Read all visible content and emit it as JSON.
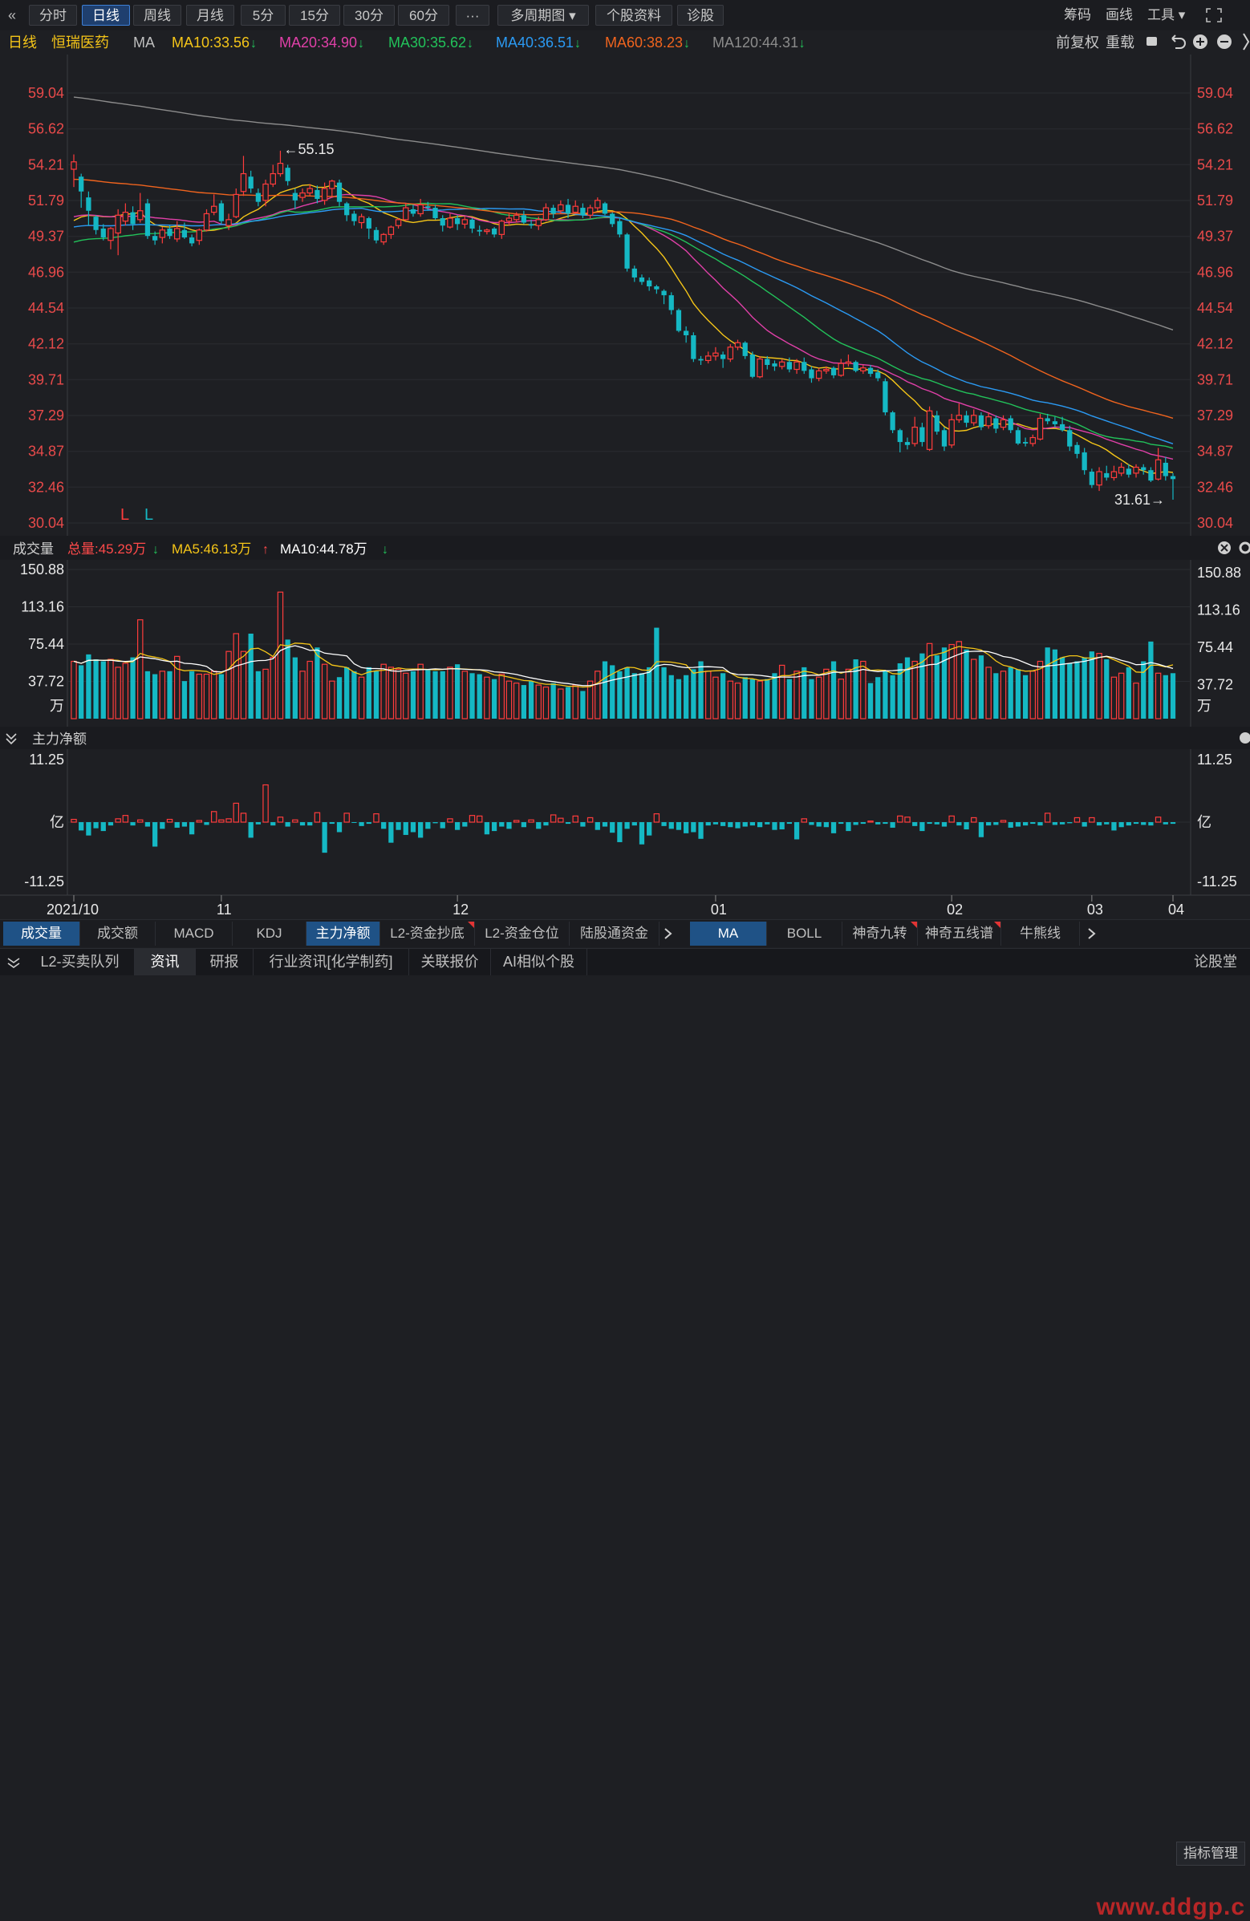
{
  "toolbar": {
    "back_icon": "double-chevron-left-icon",
    "buttons": [
      "分时",
      "日线",
      "周线",
      "月线",
      "5分",
      "15分",
      "30分",
      "60分",
      "···",
      "多周期图 ▾",
      "个股资料",
      "诊股"
    ],
    "active": "日线",
    "right_items": [
      "筹码",
      "画线",
      "工具 ▾"
    ],
    "fullscreen_icon": "fullscreen-icon"
  },
  "ma_bar": {
    "period": "日线",
    "stock": "恒瑞医药",
    "label": "MA",
    "items": [
      {
        "text": "MA10:33.56",
        "arrow": "↓",
        "color": "#f5c518"
      },
      {
        "text": "MA20:34.90",
        "arrow": "↓",
        "color": "#e040a8"
      },
      {
        "text": "MA30:35.62",
        "arrow": "↓",
        "color": "#22c25a"
      },
      {
        "text": "MA40:36.51",
        "arrow": "↓",
        "color": "#2b9af3"
      },
      {
        "text": "MA60:38.23",
        "arrow": "↓",
        "color": "#f0641e"
      },
      {
        "text": "MA120:44.31",
        "arrow": "↓",
        "color": "#8c8c8c"
      }
    ],
    "right_items": [
      "前复权",
      "重载"
    ]
  },
  "price_axis": [
    "59.04",
    "56.62",
    "54.21",
    "51.79",
    "49.37",
    "46.96",
    "44.54",
    "42.12",
    "39.71",
    "37.29",
    "34.87",
    "32.46",
    "30.04"
  ],
  "annotations": {
    "high": "←55.15",
    "low": "31.61→",
    "mark1": "L",
    "mark2": "L"
  },
  "volume_bar": {
    "title": "成交量",
    "total": "总量:45.29万",
    "ma5": "MA5:46.13万",
    "ma10": "MA10:44.78万",
    "axis": [
      "150.88",
      "113.16",
      "75.44",
      "37.72",
      "万"
    ]
  },
  "flow_bar": {
    "title": "主力净额",
    "axis": [
      "11.25",
      "亿",
      "-11.25"
    ]
  },
  "date_axis": [
    "2021/10",
    "11",
    "12",
    "01",
    "02",
    "03",
    "04"
  ],
  "indicator_tabs": {
    "left": [
      "成交量",
      "成交额",
      "MACD",
      "KDJ",
      "主力净额",
      "L2-资金抄底",
      "L2-资金仓位",
      "陆股通资金"
    ],
    "left_active": [
      "成交量",
      "主力净额"
    ],
    "flagged": [
      "L2-资金抄底"
    ],
    "right": [
      "MA",
      "BOLL",
      "神奇九转",
      "神奇五线谱",
      "牛熊线"
    ],
    "right_active": "MA",
    "right_flagged": [
      "神奇九转",
      "神奇五线谱"
    ],
    "manage": "指标管理"
  },
  "bottom_tabs": {
    "items": [
      "L2-买卖队列",
      "资讯",
      "研报",
      "行业资讯[化学制药]",
      "关联报价",
      "AI相似个股"
    ],
    "active": "资讯",
    "right": "论股堂"
  },
  "watermark": "www.ddgp.c",
  "colors": {
    "up": "#ff3c3c",
    "down": "#15b8c4",
    "bg": "#1e1f23",
    "axis_text": "#e84a4a"
  },
  "chart_data": {
    "type": "candlestick",
    "title": "",
    "ylim": [
      30.04,
      59.04
    ],
    "x_ticks": [
      "2021/10",
      "11",
      "12",
      "01",
      "02",
      "03",
      "04"
    ],
    "candles": [
      [
        53.9,
        54.4,
        54.9,
        52.7
      ],
      [
        53.4,
        52.4,
        53.6,
        51.3
      ],
      [
        52.0,
        51.1,
        52.4,
        50.1
      ],
      [
        50.7,
        49.8,
        50.8,
        49.5
      ],
      [
        49.9,
        49.3,
        50.2,
        49.1
      ],
      [
        49.1,
        49.9,
        50.0,
        48.5
      ],
      [
        49.6,
        50.8,
        51.2,
        48.1
      ],
      [
        50.4,
        51.0,
        51.6,
        50.1
      ],
      [
        51.0,
        50.2,
        51.4,
        49.8
      ],
      [
        50.5,
        51.1,
        52.3,
        50.3
      ],
      [
        51.6,
        49.4,
        51.9,
        49.2
      ],
      [
        49.4,
        49.1,
        49.7,
        48.8
      ],
      [
        49.3,
        49.8,
        50.0,
        48.9
      ],
      [
        49.9,
        49.4,
        50.1,
        49.2
      ],
      [
        49.2,
        49.9,
        50.4,
        49.0
      ],
      [
        49.8,
        49.3,
        50.3,
        49.2
      ],
      [
        49.3,
        48.9,
        49.5,
        48.7
      ],
      [
        49.1,
        49.8,
        49.9,
        48.8
      ],
      [
        49.8,
        50.9,
        51.2,
        49.7
      ],
      [
        51.0,
        51.4,
        52.2,
        50.8
      ],
      [
        51.6,
        50.4,
        51.8,
        50.2
      ],
      [
        50.1,
        50.5,
        50.9,
        49.8
      ],
      [
        50.7,
        52.2,
        52.6,
        50.6
      ],
      [
        52.4,
        53.6,
        54.8,
        52.1
      ],
      [
        53.4,
        52.6,
        53.8,
        52.3
      ],
      [
        52.3,
        51.7,
        52.6,
        51.4
      ],
      [
        51.8,
        52.9,
        53.2,
        51.4
      ],
      [
        52.9,
        53.6,
        54.2,
        52.7
      ],
      [
        53.6,
        54.3,
        55.15,
        53.4
      ],
      [
        54.0,
        53.1,
        54.2,
        52.8
      ],
      [
        52.3,
        51.8,
        52.6,
        51.2
      ],
      [
        52.0,
        52.3,
        52.6,
        51.7
      ],
      [
        52.3,
        52.6,
        52.9,
        52.1
      ],
      [
        52.5,
        51.9,
        52.8,
        51.6
      ],
      [
        51.8,
        52.6,
        53.0,
        51.5
      ],
      [
        52.6,
        53.1,
        53.2,
        52.1
      ],
      [
        53.0,
        51.7,
        53.2,
        51.4
      ],
      [
        51.6,
        50.8,
        51.7,
        50.4
      ],
      [
        50.9,
        50.4,
        51.1,
        50.1
      ],
      [
        50.3,
        50.7,
        50.9,
        49.9
      ],
      [
        50.6,
        49.9,
        50.7,
        49.2
      ],
      [
        49.8,
        49.1,
        50.0,
        48.9
      ],
      [
        49.0,
        49.5,
        49.6,
        48.8
      ],
      [
        49.5,
        50.0,
        50.1,
        49.2
      ],
      [
        50.1,
        50.5,
        50.6,
        49.9
      ],
      [
        50.5,
        51.3,
        51.6,
        50.4
      ],
      [
        51.2,
        50.9,
        51.5,
        50.7
      ],
      [
        50.9,
        51.5,
        51.9,
        50.7
      ],
      [
        51.4,
        51.3,
        51.7,
        51.1
      ],
      [
        51.3,
        50.6,
        51.5,
        50.5
      ],
      [
        50.6,
        50.1,
        50.8,
        49.7
      ],
      [
        50.0,
        50.6,
        50.9,
        49.9
      ],
      [
        50.6,
        50.2,
        50.8,
        49.8
      ],
      [
        50.2,
        50.5,
        50.7,
        49.9
      ],
      [
        50.5,
        49.9,
        50.6,
        49.6
      ],
      [
        49.8,
        49.7,
        50.1,
        49.4
      ],
      [
        49.7,
        49.8,
        49.9,
        49.5
      ],
      [
        49.9,
        49.5,
        50.0,
        49.3
      ],
      [
        49.5,
        50.4,
        50.5,
        49.2
      ],
      [
        50.4,
        50.6,
        50.9,
        50.1
      ],
      [
        50.5,
        50.8,
        51.0,
        50.3
      ],
      [
        50.8,
        50.3,
        51.1,
        50.2
      ],
      [
        50.2,
        50.1,
        50.5,
        49.9
      ],
      [
        50.1,
        50.5,
        50.7,
        49.8
      ],
      [
        50.5,
        51.3,
        51.6,
        50.4
      ],
      [
        51.3,
        50.9,
        51.5,
        50.6
      ],
      [
        51.1,
        51.5,
        51.8,
        50.9
      ],
      [
        51.5,
        50.9,
        51.9,
        50.6
      ],
      [
        51.0,
        51.4,
        51.8,
        50.9
      ],
      [
        51.3,
        50.8,
        51.6,
        50.6
      ],
      [
        50.8,
        51.3,
        51.5,
        50.6
      ],
      [
        51.3,
        51.8,
        52.0,
        51.1
      ],
      [
        51.6,
        50.9,
        51.7,
        50.8
      ],
      [
        50.9,
        50.2,
        51.0,
        50.0
      ],
      [
        50.4,
        49.5,
        50.6,
        49.3
      ],
      [
        49.5,
        47.2,
        49.6,
        47.0
      ],
      [
        47.2,
        46.6,
        47.4,
        46.3
      ],
      [
        46.6,
        46.3,
        46.8,
        46.1
      ],
      [
        46.4,
        46.0,
        46.6,
        45.7
      ],
      [
        46.0,
        45.8,
        46.1,
        45.5
      ],
      [
        45.7,
        45.4,
        45.8,
        44.8
      ],
      [
        45.4,
        44.4,
        45.6,
        44.1
      ],
      [
        44.4,
        43.0,
        44.5,
        42.9
      ],
      [
        43.0,
        42.7,
        43.3,
        42.2
      ],
      [
        42.7,
        41.1,
        42.9,
        40.9
      ],
      [
        41.1,
        41.0,
        41.3,
        40.7
      ],
      [
        41.0,
        41.3,
        41.6,
        40.8
      ],
      [
        41.3,
        41.5,
        41.9,
        41.0
      ],
      [
        41.4,
        41.1,
        41.6,
        40.5
      ],
      [
        41.1,
        41.9,
        42.1,
        40.9
      ],
      [
        41.9,
        42.2,
        42.4,
        41.7
      ],
      [
        42.2,
        41.3,
        42.3,
        41.1
      ],
      [
        41.4,
        39.9,
        41.6,
        39.8
      ],
      [
        39.9,
        41.1,
        41.3,
        39.8
      ],
      [
        41.1,
        40.7,
        41.3,
        40.4
      ],
      [
        40.8,
        40.6,
        41.0,
        40.3
      ],
      [
        40.6,
        40.9,
        41.1,
        40.4
      ],
      [
        40.9,
        40.4,
        41.2,
        40.2
      ],
      [
        40.4,
        40.9,
        41.1,
        40.1
      ],
      [
        40.9,
        40.3,
        41.2,
        40.1
      ],
      [
        40.4,
        39.8,
        40.6,
        39.5
      ],
      [
        39.8,
        40.3,
        40.5,
        39.6
      ],
      [
        40.3,
        40.4,
        40.6,
        40.1
      ],
      [
        40.5,
        40.0,
        40.6,
        39.8
      ],
      [
        40.0,
        40.8,
        41.1,
        39.9
      ],
      [
        40.8,
        40.9,
        41.4,
        40.6
      ],
      [
        40.9,
        40.3,
        41.0,
        40.2
      ],
      [
        40.3,
        40.5,
        40.7,
        40.1
      ],
      [
        40.5,
        40.1,
        40.7,
        39.9
      ],
      [
        40.2,
        39.8,
        40.4,
        39.6
      ],
      [
        39.6,
        37.5,
        39.8,
        37.3
      ],
      [
        37.5,
        36.3,
        37.6,
        36.1
      ],
      [
        36.3,
        35.5,
        36.4,
        34.8
      ],
      [
        35.5,
        35.3,
        35.8,
        35.0
      ],
      [
        35.4,
        36.5,
        37.2,
        35.2
      ],
      [
        36.5,
        35.5,
        36.8,
        35.2
      ],
      [
        35.0,
        37.6,
        37.9,
        34.9
      ],
      [
        37.3,
        36.2,
        37.6,
        36.0
      ],
      [
        36.3,
        35.2,
        36.5,
        34.9
      ],
      [
        35.3,
        37.0,
        37.4,
        35.1
      ],
      [
        37.0,
        37.3,
        38.1,
        36.8
      ],
      [
        37.3,
        36.8,
        37.6,
        36.5
      ],
      [
        36.8,
        37.3,
        37.7,
        36.6
      ],
      [
        37.3,
        36.5,
        37.5,
        36.3
      ],
      [
        36.6,
        37.2,
        37.5,
        36.4
      ],
      [
        37.1,
        36.4,
        37.3,
        36.1
      ],
      [
        36.5,
        37.0,
        37.3,
        36.3
      ],
      [
        37.1,
        36.3,
        37.3,
        36.1
      ],
      [
        36.3,
        35.4,
        36.5,
        35.3
      ],
      [
        35.5,
        35.4,
        35.8,
        35.2
      ],
      [
        35.4,
        35.8,
        36.0,
        35.2
      ],
      [
        35.7,
        37.1,
        37.4,
        35.6
      ],
      [
        37.1,
        36.9,
        37.4,
        36.7
      ],
      [
        36.9,
        36.7,
        37.2,
        36.5
      ],
      [
        36.7,
        36.3,
        37.2,
        36.2
      ],
      [
        36.3,
        35.2,
        36.6,
        34.9
      ],
      [
        35.3,
        34.7,
        35.5,
        34.4
      ],
      [
        34.8,
        33.6,
        35.1,
        33.3
      ],
      [
        33.5,
        32.6,
        33.7,
        32.4
      ],
      [
        32.6,
        33.5,
        33.8,
        32.2
      ],
      [
        33.4,
        33.1,
        33.9,
        32.9
      ],
      [
        33.1,
        33.5,
        33.9,
        32.9
      ],
      [
        33.4,
        33.8,
        34.1,
        33.2
      ],
      [
        33.7,
        33.3,
        34.0,
        33.1
      ],
      [
        33.4,
        33.8,
        34.0,
        33.1
      ],
      [
        33.8,
        33.6,
        34.0,
        33.3
      ],
      [
        33.6,
        32.9,
        33.8,
        32.8
      ],
      [
        33.0,
        34.3,
        35.1,
        32.9
      ],
      [
        34.1,
        33.2,
        34.5,
        32.9
      ],
      [
        33.2,
        33.0,
        33.4,
        31.61
      ]
    ],
    "ma_lines": {
      "MA10": {
        "color": "#f5c518",
        "end": 33.56
      },
      "MA20": {
        "color": "#e040a8",
        "end": 34.9
      },
      "MA30": {
        "color": "#22c25a",
        "end": 35.62
      },
      "MA40": {
        "color": "#2b9af3",
        "end": 36.51
      },
      "MA60": {
        "color": "#f0641e",
        "end": 38.23
      },
      "MA120": {
        "color": "#8c8c8c",
        "end": 44.31
      }
    },
    "volume": {
      "unit": "万",
      "ylim": [
        0,
        150.88
      ],
      "values": [
        58,
        54,
        65,
        60,
        58,
        60,
        52,
        56,
        62,
        100,
        48,
        45,
        48,
        48,
        63,
        38,
        48,
        45,
        45,
        48,
        45,
        68,
        86,
        68,
        86,
        48,
        50,
        62,
        128,
        80,
        62,
        48,
        58,
        72,
        55,
        38,
        42,
        52,
        48,
        42,
        52,
        48,
        55,
        52,
        50,
        46,
        48,
        55,
        50,
        48,
        48,
        52,
        55,
        48,
        46,
        45,
        42,
        40,
        45,
        38,
        36,
        34,
        38,
        34,
        32,
        36,
        30,
        32,
        34,
        28,
        38,
        48,
        58,
        54,
        48,
        52,
        46,
        46,
        52,
        92,
        52,
        44,
        40,
        44,
        50,
        58,
        48,
        42,
        46,
        38,
        36,
        42,
        40,
        38,
        40,
        46,
        54,
        40,
        48,
        52,
        40,
        42,
        50,
        58,
        40,
        50,
        60,
        58,
        36,
        42,
        48,
        44,
        56,
        62,
        58,
        66,
        76,
        64,
        72,
        75,
        78,
        70,
        60,
        64,
        52,
        46,
        48,
        52,
        50,
        44,
        48,
        58,
        72,
        70,
        62,
        56,
        58,
        62,
        68,
        66,
        60,
        42,
        46,
        52,
        36,
        58,
        78,
        46,
        44,
        46,
        44,
        42,
        40,
        36,
        38,
        62,
        40,
        42,
        56,
        76,
        46,
        52
      ],
      "ma5_end": 46.13,
      "ma10_end": 44.78
    },
    "main_net": {
      "unit": "亿",
      "ylim": [
        -11.25,
        11.25
      ],
      "values": [
        0.5,
        -1.5,
        -2.4,
        -1.1,
        -1.6,
        -0.6,
        0.6,
        1.2,
        -0.6,
        0.4,
        -0.8,
        -4.4,
        -1.2,
        0.5,
        -1.0,
        -0.8,
        -2.2,
        0.3,
        -0.5,
        1.9,
        0.4,
        0.6,
        3.4,
        1.6,
        -2.8,
        -0.4,
        6.7,
        -0.6,
        0.9,
        -0.8,
        0.4,
        -0.6,
        -0.6,
        1.7,
        -5.5,
        -0.3,
        -1.8,
        1.6,
        -0.1,
        -0.7,
        -0.3,
        1.5,
        -1.2,
        -3.7,
        -1.4,
        -2.3,
        -1.8,
        -2.8,
        -1.2,
        -0.2,
        -1.1,
        0.6,
        -1.4,
        -0.8,
        1.2,
        1.1,
        -2.2,
        -1.6,
        -0.8,
        -1.2,
        0.3,
        -0.9,
        0.4,
        -1.2,
        -0.6,
        1.3,
        0.7,
        -0.3,
        1.1,
        -0.8,
        0.8,
        -1.4,
        -0.8,
        -1.9,
        -3.6,
        -1.2,
        -0.6,
        -4.0,
        -2.4,
        1.5,
        -0.7,
        -1.2,
        -1.4,
        -2.0,
        -1.8,
        -3.0,
        -0.6,
        -0.4,
        -0.7,
        -0.9,
        -1.1,
        -0.8,
        -0.6,
        -0.9,
        -0.4,
        -1.4,
        -1.3,
        -0.3,
        -3.1,
        0.6,
        -0.5,
        -0.8,
        -0.9,
        -2.0,
        -0.3,
        -1.6,
        -0.5,
        -0.3,
        0.2,
        -0.4,
        -0.3,
        -1.0,
        1.1,
        0.9,
        -0.7,
        -1.6,
        -0.3,
        -0.4,
        -0.8,
        1.1,
        -0.6,
        -1.3,
        0.8,
        -2.7,
        -0.6,
        -0.5,
        0.3,
        -1.0,
        -0.8,
        -0.6,
        -0.3,
        -0.6,
        1.6,
        -0.5,
        -0.4,
        -0.2,
        0.8,
        -0.8,
        0.8,
        -0.6,
        -0.4,
        -1.5,
        -0.9,
        -0.6,
        -0.3,
        -0.5,
        -0.6,
        0.9,
        -0.4,
        -0.3,
        -0.5,
        -0.4,
        -0.6,
        -0.3,
        -0.7,
        1.1,
        -0.4,
        0.3,
        0.2,
        1.4,
        -0.8,
        0.2
      ]
    }
  }
}
